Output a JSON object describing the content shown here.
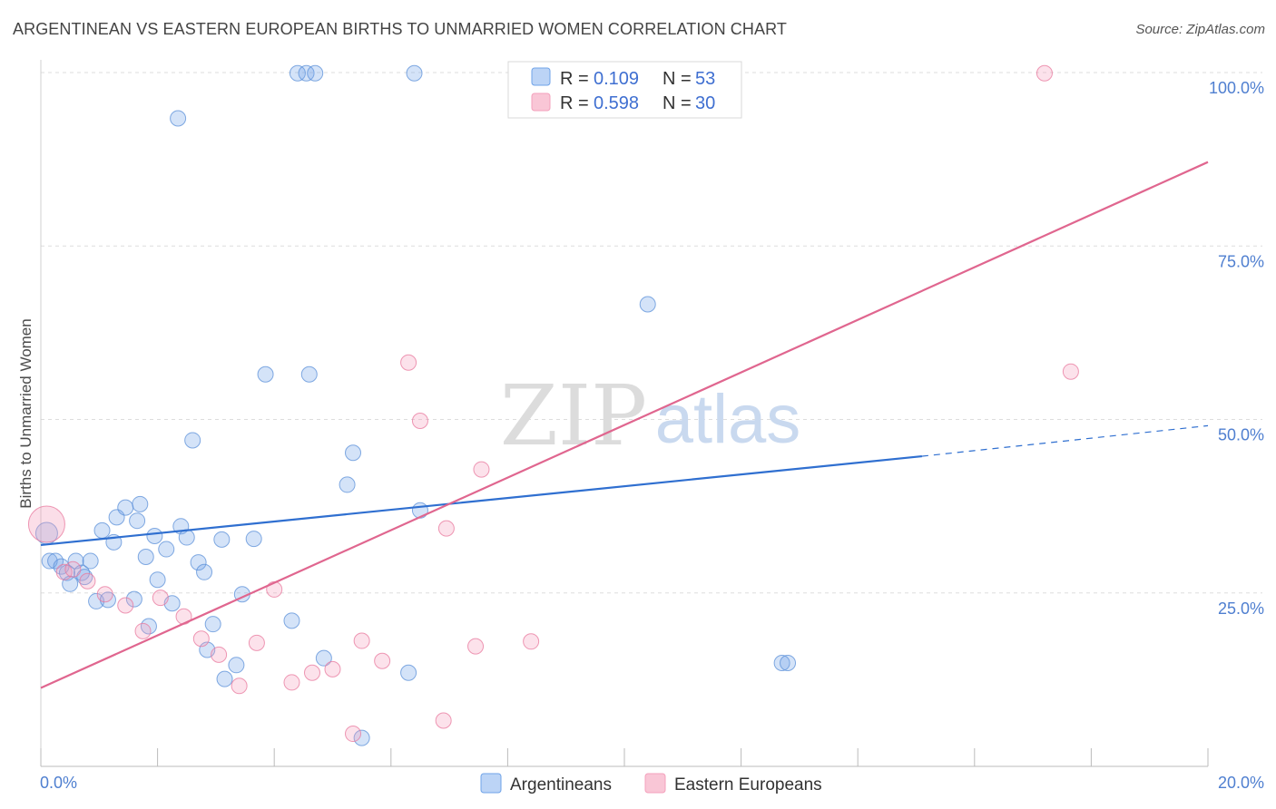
{
  "title": "ARGENTINEAN VS EASTERN EUROPEAN BIRTHS TO UNMARRIED WOMEN CORRELATION CHART",
  "source": "Source: ZipAtlas.com",
  "watermark": {
    "zip": "ZIP",
    "atlas": "atlas"
  },
  "chart_data": {
    "type": "scatter",
    "xlabel": "",
    "ylabel": "Births to Unmarried Women",
    "xlim": [
      0,
      20
    ],
    "ylim": [
      0,
      100
    ],
    "x_ticks": [
      0,
      2,
      4,
      6,
      8,
      10,
      12,
      14,
      16,
      18,
      20
    ],
    "x_tick_labels": {
      "min": "0.0%",
      "max": "20.0%"
    },
    "y_ticks": [
      25,
      50,
      75,
      100
    ],
    "y_tick_labels": [
      "25.0%",
      "50.0%",
      "75.0%",
      "100.0%"
    ],
    "grid": true,
    "legend_position": "top-center",
    "series": [
      {
        "name": "Argentineans",
        "color": "#6fa3e8",
        "stroke": "#5a8fd8",
        "R": "0.109",
        "N": "53",
        "trend": {
          "x0": 0,
          "y0": 31.9,
          "x1": 15.1,
          "y1": 44.7,
          "dash_to_x": 20,
          "dash_to_y": 49.1
        },
        "points": [
          [
            0.1,
            33.6
          ],
          [
            0.15,
            29.6
          ],
          [
            0.25,
            29.6
          ],
          [
            0.35,
            28.8
          ],
          [
            0.45,
            27.9
          ],
          [
            0.5,
            26.3
          ],
          [
            0.6,
            29.6
          ],
          [
            0.7,
            27.9
          ],
          [
            0.75,
            27.3
          ],
          [
            0.85,
            29.6
          ],
          [
            0.95,
            23.8
          ],
          [
            1.05,
            34.0
          ],
          [
            1.15,
            24.0
          ],
          [
            1.25,
            32.3
          ],
          [
            1.3,
            35.9
          ],
          [
            1.45,
            37.3
          ],
          [
            1.6,
            24.1
          ],
          [
            1.65,
            35.4
          ],
          [
            1.7,
            37.8
          ],
          [
            1.8,
            30.2
          ],
          [
            1.85,
            20.2
          ],
          [
            1.95,
            33.2
          ],
          [
            2.0,
            26.9
          ],
          [
            2.15,
            31.3
          ],
          [
            2.25,
            23.5
          ],
          [
            2.35,
            93.4
          ],
          [
            2.4,
            34.6
          ],
          [
            2.5,
            33.0
          ],
          [
            2.6,
            47.0
          ],
          [
            2.7,
            29.4
          ],
          [
            2.8,
            28.0
          ],
          [
            2.85,
            16.8
          ],
          [
            2.95,
            20.5
          ],
          [
            3.1,
            32.7
          ],
          [
            3.15,
            12.6
          ],
          [
            3.35,
            14.6
          ],
          [
            3.45,
            24.8
          ],
          [
            3.65,
            32.8
          ],
          [
            3.85,
            56.5
          ],
          [
            4.3,
            21.0
          ],
          [
            4.4,
            99.9
          ],
          [
            4.55,
            99.9
          ],
          [
            4.6,
            56.5
          ],
          [
            4.7,
            99.9
          ],
          [
            4.85,
            15.6
          ],
          [
            5.25,
            40.6
          ],
          [
            5.35,
            45.2
          ],
          [
            5.5,
            4.1
          ],
          [
            6.3,
            13.5
          ],
          [
            6.4,
            99.9
          ],
          [
            6.5,
            36.9
          ],
          [
            10.4,
            66.6
          ],
          [
            12.7,
            14.9
          ],
          [
            12.8,
            14.9
          ]
        ]
      },
      {
        "name": "Eastern Europeans",
        "color": "#f4a0bc",
        "stroke": "#e8779c",
        "R": "0.598",
        "N": "30",
        "trend": {
          "x0": 0,
          "y0": 11.3,
          "x1": 20,
          "y1": 87.1
        },
        "points": [
          [
            0.1,
            34.9
          ],
          [
            0.4,
            28.0
          ],
          [
            0.55,
            28.4
          ],
          [
            0.8,
            26.7
          ],
          [
            1.1,
            24.8
          ],
          [
            1.45,
            23.2
          ],
          [
            1.75,
            19.5
          ],
          [
            2.05,
            24.3
          ],
          [
            2.45,
            21.6
          ],
          [
            2.75,
            18.4
          ],
          [
            3.05,
            16.1
          ],
          [
            3.4,
            11.6
          ],
          [
            3.7,
            17.8
          ],
          [
            4.0,
            25.5
          ],
          [
            4.3,
            12.1
          ],
          [
            4.65,
            13.5
          ],
          [
            5.0,
            14.0
          ],
          [
            5.35,
            4.7
          ],
          [
            5.5,
            18.1
          ],
          [
            5.85,
            15.2
          ],
          [
            6.3,
            58.2
          ],
          [
            6.5,
            49.8
          ],
          [
            6.95,
            34.3
          ],
          [
            6.9,
            6.6
          ],
          [
            7.45,
            17.3
          ],
          [
            7.55,
            42.8
          ],
          [
            8.4,
            18.0
          ],
          [
            9.3,
            99.9
          ],
          [
            17.2,
            99.9
          ],
          [
            17.65,
            56.9
          ]
        ]
      }
    ]
  },
  "legend": {
    "r_label": "R =",
    "n_label": "N ="
  }
}
